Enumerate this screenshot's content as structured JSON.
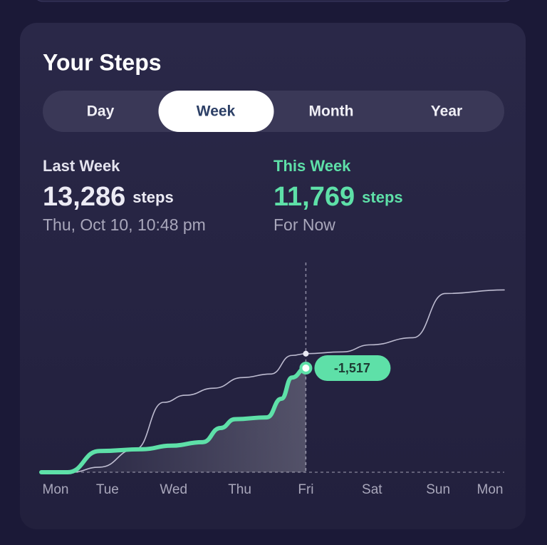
{
  "header": {
    "title": "Your Steps"
  },
  "tabs": {
    "items": [
      "Day",
      "Week",
      "Month",
      "Year"
    ],
    "selected": 1
  },
  "stats": {
    "last": {
      "value": "13,286",
      "unit": "steps",
      "note": "Thu, Oct 10, 10:48 pm"
    },
    "current": {
      "value": "11,769",
      "unit": "steps",
      "note": "For Now"
    }
  },
  "chart_data": {
    "type": "line",
    "categories": [
      "Mon",
      "Tue",
      "Wed",
      "Thu",
      "Fri",
      "Sat",
      "Sun",
      "Mon"
    ],
    "xlim": [
      0,
      7
    ],
    "ylim": [
      0,
      23700
    ],
    "cursor_x": 4,
    "annotation": "-1,517",
    "series": [
      {
        "name": "Last Week",
        "color": "#bdbbd0",
        "x": [
          0,
          0.45,
          0.88,
          1.42,
          1.85,
          2.18,
          2.61,
          3.04,
          3.47,
          3.79,
          4,
          4.55,
          4.98,
          5.62,
          6.11,
          7
        ],
        "values": [
          0,
          0,
          570,
          2600,
          7900,
          8700,
          9500,
          10700,
          11100,
          13200,
          13400,
          13600,
          14400,
          15200,
          20200,
          20600
        ]
      },
      {
        "name": "This Week",
        "color": "#5ee0a8",
        "x": [
          0,
          0.4,
          0.88,
          1.53,
          1.96,
          2.44,
          2.71,
          2.93,
          3.41,
          3.63,
          3.79,
          4
        ],
        "values": [
          0,
          0,
          2400,
          2600,
          3000,
          3400,
          5000,
          6000,
          6200,
          8300,
          10700,
          11769
        ]
      }
    ]
  }
}
